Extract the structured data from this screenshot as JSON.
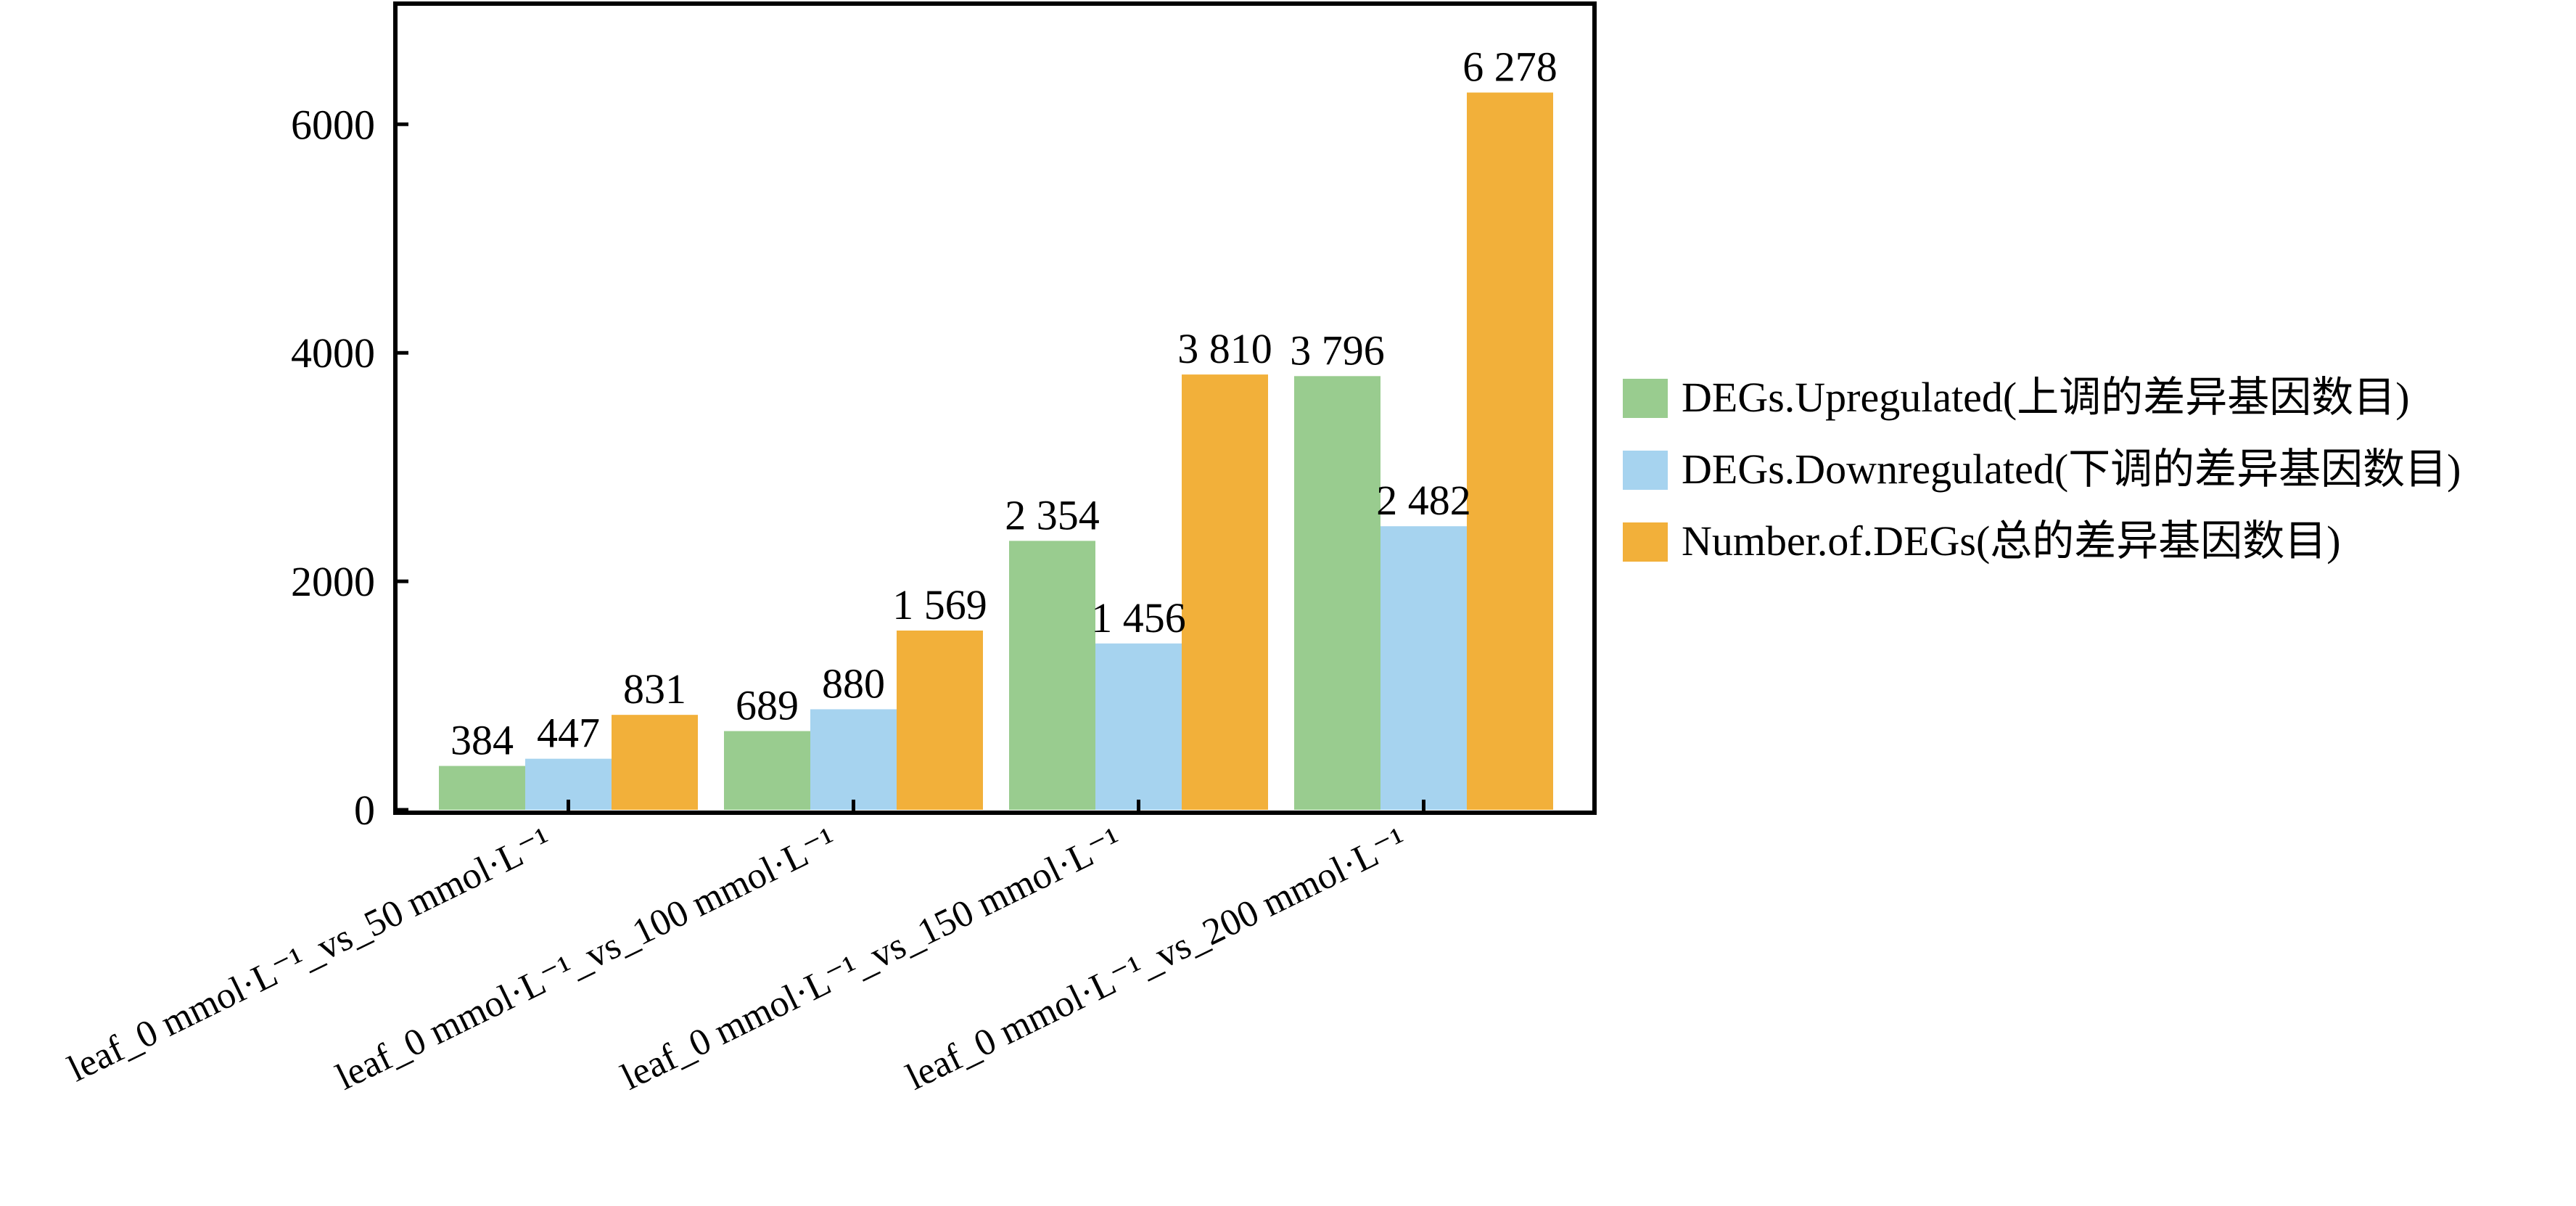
{
  "chart_data": {
    "type": "bar",
    "categories": [
      "leaf_0 mmol·L⁻¹_vs_50 mmol·L⁻¹",
      "leaf_0 mmol·L⁻¹_vs_100 mmol·L⁻¹",
      "leaf_0 mmol·L⁻¹_vs_150 mmol·L⁻¹",
      "leaf_0 mmol·L⁻¹_vs_200 mmol·L⁻¹"
    ],
    "series": [
      {
        "name": "DEGs.Upregulated(上调的差异基因数目)",
        "color": "#99cc8f",
        "values": [
          384,
          689,
          2354,
          3796
        ],
        "labels": [
          "384",
          "689",
          "2 354",
          "3 796"
        ]
      },
      {
        "name": "DEGs.Downregulated(下调的差异基因数目)",
        "color": "#a6d3ef",
        "values": [
          447,
          880,
          1456,
          2482
        ],
        "labels": [
          "447",
          "880",
          "1 456",
          "2 482"
        ]
      },
      {
        "name": "Number.of.DEGs(总的差异基因数目)",
        "color": "#f2b03a",
        "values": [
          831,
          1569,
          3810,
          6278
        ],
        "labels": [
          "831",
          "1 569",
          "3 810",
          "6 278"
        ]
      }
    ],
    "yticks": [
      0,
      2000,
      4000,
      6000
    ],
    "ylim": [
      0,
      7050
    ],
    "title": "",
    "xlabel": "",
    "ylabel": "",
    "legend": "right",
    "grid": false
  }
}
